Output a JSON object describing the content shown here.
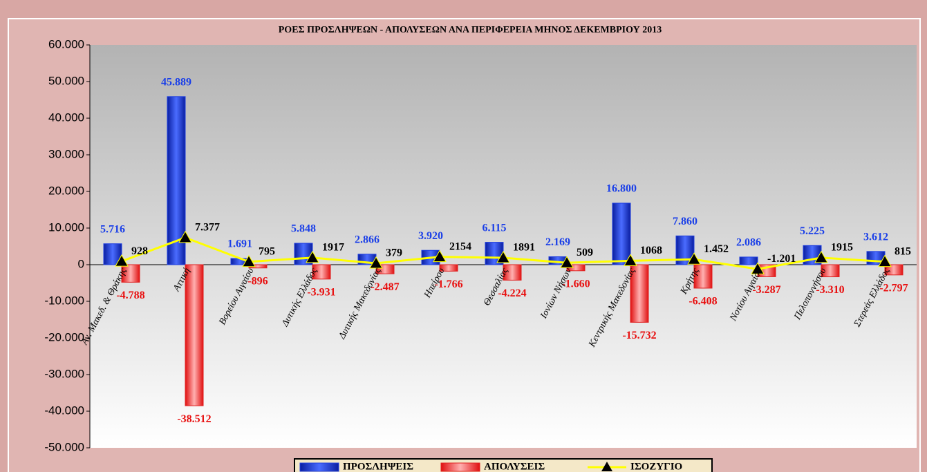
{
  "chart_data": {
    "type": "bar",
    "title": "ΡΟΕΣ ΠΡΟΣΛΗΨΕΩΝ - ΑΠΟΛΥΣΕΩΝ ΑΝΑ ΠΕΡΙΦΕΡΕΙΑ ΜΗΝΟΣ  ΔΕΚΕΜΒΡΙΟΥ 2013",
    "categories": [
      "Αν. Μακεδ. & Θράκης",
      "Αττική",
      "Βορείου Αιγαίου",
      "Δυτικής Ελλάδος",
      "Δυτικής Μακεδονίας",
      "Ηπείρου",
      "Θεσσαλίας",
      "Ιονίων Νήσων",
      "Κεντρικής Μακεδονίας",
      "Κρήτης",
      "Νοτίου Αιγαίου",
      "Πελοποννήσου",
      "Στερεάς Ελλάδος"
    ],
    "series": [
      {
        "name": "ΠΡΟΣΛΗΨΕΙΣ",
        "type": "bar",
        "color": "#1f3fe0",
        "label_color": "#1a3fe8",
        "values": [
          5716,
          45889,
          1691,
          5848,
          2866,
          3920,
          6115,
          2169,
          16800,
          7860,
          2086,
          5225,
          3612
        ],
        "value_labels": [
          "5.716",
          "45.889",
          "1.691",
          "5.848",
          "2.866",
          "3.920",
          "6.115",
          "2.169",
          "16.800",
          "7.860",
          "2.086",
          "5.225",
          "3.612"
        ]
      },
      {
        "name": "ΑΠΟΛΥΣΕΙΣ",
        "type": "bar",
        "color": "#e02020",
        "label_color": "#e81010",
        "values": [
          -4788,
          -38512,
          -896,
          -3931,
          -2487,
          -1766,
          -4224,
          -1660,
          -15732,
          -6408,
          -3287,
          -3310,
          -2797
        ],
        "value_labels": [
          "-4.788",
          "-38.512",
          "-896",
          "-3.931",
          "-2.487",
          "-1.766",
          "-4.224",
          "-1.660",
          "-15.732",
          "-6.408",
          "-3.287",
          "-3.310",
          "-2.797"
        ]
      },
      {
        "name": "ΙΣΟΖΥΓΙΟ",
        "type": "line",
        "color": "#ffff00",
        "label_color": "#000000",
        "values": [
          928,
          7377,
          795,
          1917,
          379,
          2154,
          1891,
          509,
          1068,
          1452,
          -1201,
          1915,
          815
        ],
        "value_labels": [
          "928",
          "7.377",
          "795",
          "1917",
          "379",
          "2154",
          "1891",
          "509",
          "1068",
          "1.452",
          "-1.201",
          "1915",
          "815"
        ]
      }
    ],
    "ylim": [
      -50000,
      60000
    ],
    "yticks": [
      {
        "value": -50000,
        "label": "-50.000"
      },
      {
        "value": -40000,
        "label": "-40.000"
      },
      {
        "value": -30000,
        "label": "-30.000"
      },
      {
        "value": -20000,
        "label": "-20.000"
      },
      {
        "value": -10000,
        "label": "-10.000"
      },
      0,
      {
        "value": 10000,
        "label": "10.000"
      },
      {
        "value": 20000,
        "label": "20.000"
      },
      {
        "value": 30000,
        "label": "30.000"
      },
      {
        "value": 40000,
        "label": "40.000"
      },
      {
        "value": 50000,
        "label": "50.000"
      },
      {
        "value": 60000,
        "label": "60.000"
      }
    ],
    "legend": "bottom"
  }
}
